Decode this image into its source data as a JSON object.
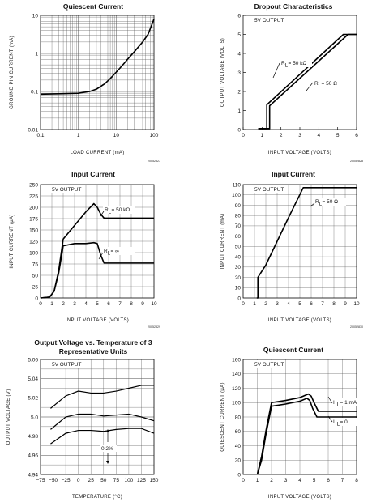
{
  "chart_data": [
    {
      "type": "line",
      "title": "Quiescent Current",
      "xlabel": "LOAD CURRENT (mA)",
      "ylabel": "GROUND PIN CURRENT (mA)",
      "xscale": "log",
      "yscale": "log",
      "xlim": [
        0.1,
        100
      ],
      "ylim": [
        0.01,
        10
      ],
      "xticks": [
        "0.1",
        "1",
        "10",
        "100"
      ],
      "yticks": [
        "0.01",
        "0.1",
        "1",
        "10"
      ],
      "grid": true,
      "code": "20052827",
      "series": [
        {
          "name": "",
          "x": [
            0.1,
            0.3,
            1,
            2,
            3,
            5,
            7,
            10,
            15,
            20,
            30,
            50,
            70,
            100
          ],
          "y": [
            0.085,
            0.087,
            0.09,
            0.1,
            0.115,
            0.16,
            0.22,
            0.32,
            0.5,
            0.7,
            1.1,
            2.0,
            3.2,
            8.0
          ]
        }
      ]
    },
    {
      "type": "line",
      "title": "Dropout Characteristics",
      "xlabel": "INPUT VOLTAGE (VOLTS)",
      "ylabel": "OUTPUT VOLTAGE (VOLTS)",
      "xlim": [
        0,
        6
      ],
      "ylim": [
        0,
        6
      ],
      "xticks": [
        "0",
        "1",
        "2",
        "3",
        "4",
        "5",
        "6"
      ],
      "yticks": [
        "0",
        "1",
        "2",
        "3",
        "4",
        "5",
        "6"
      ],
      "grid": false,
      "header": "5V OUTPUT",
      "code": "20052828",
      "labels": [
        "R",
        "L",
        "= 50 kΩ",
        "= 50 Ω"
      ],
      "series": [
        {
          "name": "",
          "x": [
            0.8,
            1.25,
            1.25,
            5.3,
            6.0
          ],
          "y": [
            0.05,
            0.05,
            1.3,
            5.0,
            5.0
          ]
        },
        {
          "name": "",
          "x": [
            0.8,
            1.4,
            1.4,
            5.55,
            6.0
          ],
          "y": [
            0.05,
            0.05,
            1.25,
            5.0,
            5.0
          ]
        }
      ]
    },
    {
      "type": "line",
      "title": "Input Current",
      "xlabel": "INPUT VOLTAGE (VOLTS)",
      "ylabel": "INPUT CURRENT (µA)",
      "xlim": [
        0,
        10
      ],
      "ylim": [
        0,
        250
      ],
      "xticks": [
        "0",
        "1",
        "2",
        "3",
        "4",
        "5",
        "6",
        "7",
        "8",
        "9",
        "10"
      ],
      "yticks": [
        "0",
        "25",
        "50",
        "75",
        "100",
        "125",
        "150",
        "175",
        "200",
        "225",
        "250"
      ],
      "grid": true,
      "header": "5V OUTPUT",
      "code": "20052829",
      "labels": [
        "R",
        "L",
        "= 50 kΩ",
        "= ∞"
      ],
      "series": [
        {
          "name": "",
          "x": [
            0,
            0.8,
            1.2,
            1.6,
            2.0,
            3.0,
            4.0,
            4.7,
            5.0,
            5.3,
            5.6,
            6.0,
            10
          ],
          "y": [
            0,
            2,
            15,
            60,
            130,
            160,
            190,
            208,
            200,
            185,
            176,
            176,
            176
          ]
        },
        {
          "name": "",
          "x": [
            0,
            0.8,
            1.2,
            1.6,
            2.0,
            3.0,
            4.0,
            4.7,
            5.0,
            5.3,
            5.6,
            6.0,
            10
          ],
          "y": [
            0,
            2,
            15,
            55,
            115,
            120,
            120,
            122,
            120,
            95,
            77,
            77,
            77
          ]
        }
      ]
    },
    {
      "type": "line",
      "title": "Input Current",
      "xlabel": "INPUT VOLTAGE (VOLTS)",
      "ylabel": "INPUT CURRENT (mA)",
      "xlim": [
        0,
        10
      ],
      "ylim": [
        0,
        110
      ],
      "xticks": [
        "0",
        "1",
        "2",
        "3",
        "4",
        "5",
        "6",
        "7",
        "8",
        "9",
        "10"
      ],
      "yticks": [
        "0",
        "10",
        "20",
        "30",
        "40",
        "50",
        "60",
        "70",
        "80",
        "90",
        "100",
        "110"
      ],
      "grid": true,
      "header": "5V OUTPUT",
      "code": "20052830",
      "labels": [
        "R",
        "L",
        "= 50 Ω"
      ],
      "series": [
        {
          "name": "",
          "x": [
            1.2,
            1.3,
            1.3,
            2.0,
            3.0,
            4.0,
            5.3,
            10
          ],
          "y": [
            0,
            0,
            20,
            32,
            55,
            78,
            107,
            107
          ]
        }
      ]
    },
    {
      "type": "line",
      "title": "Output Voltage vs. Temperature of 3 Representative Units",
      "xlabel": "TEMPERATURE (°C)",
      "ylabel": "OUTPUT VOLTAGE (V)",
      "xlim": [
        -75,
        150
      ],
      "ylim": [
        4.94,
        5.06
      ],
      "xticks": [
        "−75",
        "−50",
        "−25",
        "0",
        "25",
        "50",
        "75",
        "100",
        "125",
        "150"
      ],
      "yticks": [
        "4.94",
        "4.96",
        "4.98",
        "5.0",
        "5.02",
        "5.04",
        "5.06"
      ],
      "grid": true,
      "header": "5V OUTPUT",
      "annotation": "0.2%",
      "series": [
        {
          "name": "",
          "x": [
            -55,
            -25,
            0,
            25,
            50,
            75,
            100,
            125,
            150
          ],
          "y": [
            5.009,
            5.022,
            5.027,
            5.025,
            5.025,
            5.027,
            5.03,
            5.033,
            5.033
          ]
        },
        {
          "name": "",
          "x": [
            -55,
            -25,
            0,
            25,
            50,
            75,
            100,
            125,
            150
          ],
          "y": [
            4.987,
            5.0,
            5.003,
            5.003,
            5.001,
            5.002,
            5.003,
            5.0,
            4.996
          ]
        },
        {
          "name": "",
          "x": [
            -55,
            -25,
            0,
            25,
            50,
            75,
            100,
            125,
            150
          ],
          "y": [
            4.972,
            4.983,
            4.986,
            4.986,
            4.985,
            4.987,
            4.988,
            4.988,
            4.983
          ]
        }
      ]
    },
    {
      "type": "line",
      "title": "Quiescent Current",
      "xlabel": "INPUT VOLTAGE (VOLTS)",
      "ylabel": "QUIESCENT CURRENT (µA)",
      "xlim": [
        0,
        8
      ],
      "ylim": [
        0,
        160
      ],
      "xticks": [
        "0",
        "1",
        "2",
        "3",
        "4",
        "5",
        "6",
        "7",
        "8"
      ],
      "yticks": [
        "0",
        "20",
        "40",
        "60",
        "80",
        "100",
        "120",
        "140",
        "160"
      ],
      "grid": true,
      "header": "5V OUTPUT",
      "labels": [
        "I",
        "L",
        "= 1 mA",
        "= 0"
      ],
      "series": [
        {
          "name": "",
          "x": [
            1.0,
            1.3,
            1.6,
            2.0,
            3.0,
            4.0,
            4.6,
            4.8,
            5.0,
            5.3,
            8
          ],
          "y": [
            0,
            25,
            60,
            100,
            103,
            107,
            112,
            109,
            100,
            88,
            88
          ]
        },
        {
          "name": "",
          "x": [
            1.0,
            1.3,
            1.6,
            2.0,
            3.0,
            4.0,
            4.5,
            4.7,
            4.9,
            5.2,
            8
          ],
          "y": [
            0,
            20,
            55,
            95,
            98,
            102,
            106,
            103,
            92,
            80,
            80
          ]
        }
      ]
    }
  ]
}
